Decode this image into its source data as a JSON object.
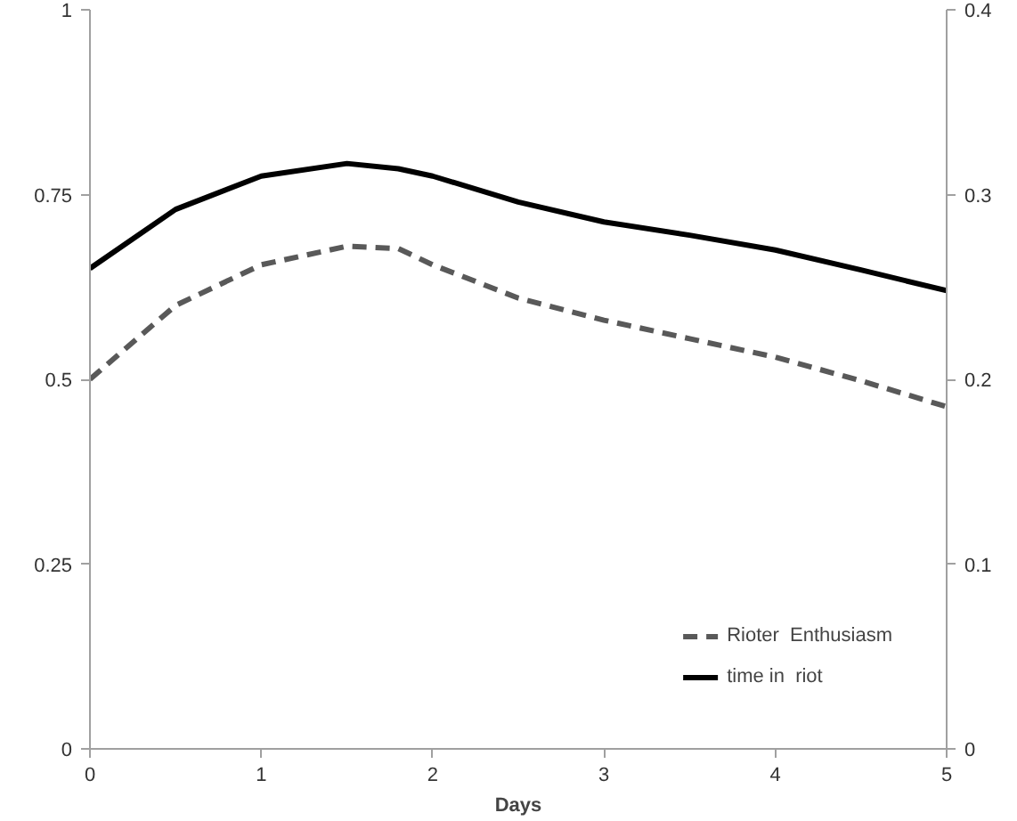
{
  "chart_data": {
    "type": "line",
    "xlabel": "Days",
    "x": [
      0,
      0.5,
      1,
      1.5,
      1.8,
      2,
      2.5,
      3,
      3.5,
      4,
      4.5,
      5
    ],
    "series": [
      {
        "name": "Rioter  Enthusiasm",
        "color": "#595959",
        "line_style": "dashed",
        "values": [
          0.5,
          0.6,
          0.655,
          0.68,
          0.677,
          0.655,
          0.61,
          0.58,
          0.555,
          0.53,
          0.498,
          0.463
        ]
      },
      {
        "name": "time in  riot",
        "color": "#000000",
        "line_style": "solid",
        "values": [
          0.65,
          0.73,
          0.775,
          0.792,
          0.785,
          0.775,
          0.74,
          0.713,
          0.695,
          0.675,
          0.648,
          0.62
        ]
      }
    ],
    "xlim": [
      0,
      5
    ],
    "xticks": [
      0,
      1,
      2,
      3,
      4,
      5
    ],
    "ylim": [
      0,
      1
    ],
    "yticks": [
      0,
      0.25,
      0.5,
      0.75,
      1
    ],
    "y2lim": [
      0,
      0.4
    ],
    "y2ticks": [
      0,
      0.1,
      0.2,
      0.3,
      0.4
    ],
    "legend": "bottom right",
    "grid": false,
    "marker": "none"
  }
}
